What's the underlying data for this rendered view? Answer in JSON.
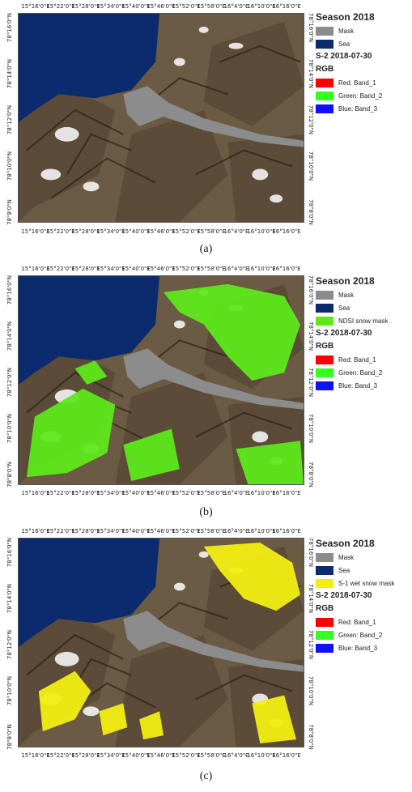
{
  "ticks": {
    "lon": [
      "15°16'0\"E",
      "15°22'0\"E",
      "15°28'0\"E",
      "15°34'0\"E",
      "15°40'0\"E",
      "15°46'0\"E",
      "15°52'0\"E",
      "15°58'0\"E",
      "16°4'0\"E",
      "16°10'0\"E",
      "16°16'0\"E"
    ],
    "lat": [
      "78°16'0\"N",
      "78°14'0\"N",
      "78°12'0\"N",
      "78°10'0\"N",
      "78°8'0\"N"
    ]
  },
  "colors": {
    "mask": "#8c8c8c",
    "sea": "#0c2a6e",
    "ndsi": "#5ee81a",
    "wet": "#f2ee12",
    "red": "#ff0000",
    "green": "#33ff22",
    "blue": "#1010ff",
    "terrain": "#6b5a44",
    "snow": "#f4f4f4"
  },
  "panels": [
    {
      "caption": "(a)",
      "legend": {
        "season": "Season 2018",
        "items": [
          {
            "label": "Mask",
            "color": "#8c8c8c"
          },
          {
            "label": "Sea",
            "color": "#0c2a6e"
          }
        ],
        "s2_title": "S-2 2018-07-30",
        "rgb_title": "RGB",
        "bands": [
          {
            "label": "Red:   Band_1",
            "color": "#ff0000"
          },
          {
            "label": "Green: Band_2",
            "color": "#33ff22"
          },
          {
            "label": "Blue:  Band_3",
            "color": "#1010ff"
          }
        ]
      },
      "overlay": "none"
    },
    {
      "caption": "(b)",
      "legend": {
        "season": "Season 2018",
        "items": [
          {
            "label": "Mask",
            "color": "#8c8c8c"
          },
          {
            "label": "Sea",
            "color": "#0c2a6e"
          },
          {
            "label": "NDSI snow mask",
            "color": "#5ee81a"
          }
        ],
        "s2_title": "S-2 2018-07-30",
        "rgb_title": "RGB",
        "bands": [
          {
            "label": "Red:   Band_1",
            "color": "#ff0000"
          },
          {
            "label": "Green: Band_2",
            "color": "#33ff22"
          },
          {
            "label": "Blue:  Band_3",
            "color": "#1010ff"
          }
        ]
      },
      "overlay": "ndsi"
    },
    {
      "caption": "(c)",
      "legend": {
        "season": "Season 2018",
        "items": [
          {
            "label": "Mask",
            "color": "#8c8c8c"
          },
          {
            "label": "Sea",
            "color": "#0c2a6e"
          },
          {
            "label": "S-1 wet snow mask",
            "color": "#f2ee12"
          }
        ],
        "s2_title": "S-2 2018-07-30",
        "rgb_title": "RGB",
        "bands": [
          {
            "label": "Red:   Band_1",
            "color": "#ff0000"
          },
          {
            "label": "Green: Band_2",
            "color": "#33ff22"
          },
          {
            "label": "Blue:  Band_3",
            "color": "#1010ff"
          }
        ]
      },
      "overlay": "wet"
    }
  ]
}
